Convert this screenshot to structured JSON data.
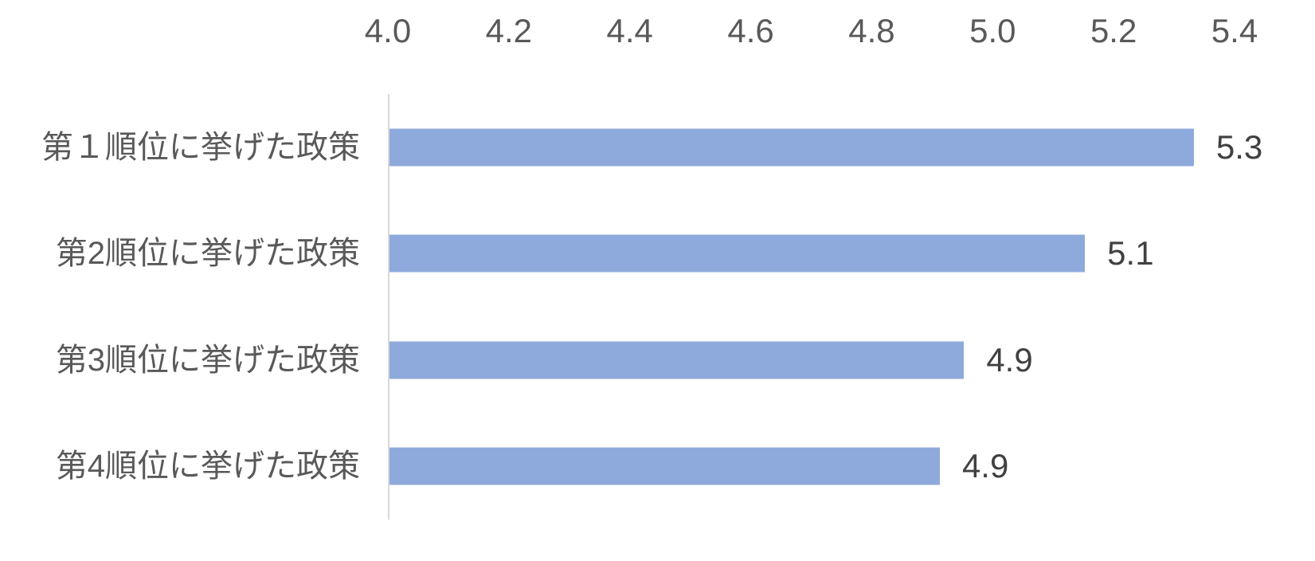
{
  "chart_data": {
    "type": "bar",
    "orientation": "horizontal",
    "title": "",
    "xlabel": "",
    "ylabel": "",
    "categories": [
      "第１順位に挙げた政策",
      "第2順位に挙げた政策",
      "第3順位に挙げた政策",
      "第4順位に挙げた政策"
    ],
    "values": [
      5.3,
      5.1,
      4.9,
      4.9
    ],
    "value_labels": [
      "5.3",
      "5.1",
      "4.9",
      "4.9"
    ],
    "values_precise": [
      5.33,
      5.15,
      4.95,
      4.91
    ],
    "xlim": [
      4.0,
      5.4
    ],
    "x_tick_values": [
      4.0,
      4.2,
      4.4,
      4.6,
      4.8,
      5.0,
      5.2,
      5.4
    ],
    "x_tick_labels": [
      "4.0",
      "4.2",
      "4.4",
      "4.6",
      "4.8",
      "5.0",
      "5.2",
      "5.4"
    ],
    "x_axis_position": "top",
    "grid": false,
    "legend": null,
    "colors": {
      "bar": "#8EA9DB",
      "axis_line": "#D9D9D9",
      "tick_label": "#595959",
      "category_label": "#595959",
      "value_label": "#404040",
      "background": "#FFFFFF"
    }
  }
}
